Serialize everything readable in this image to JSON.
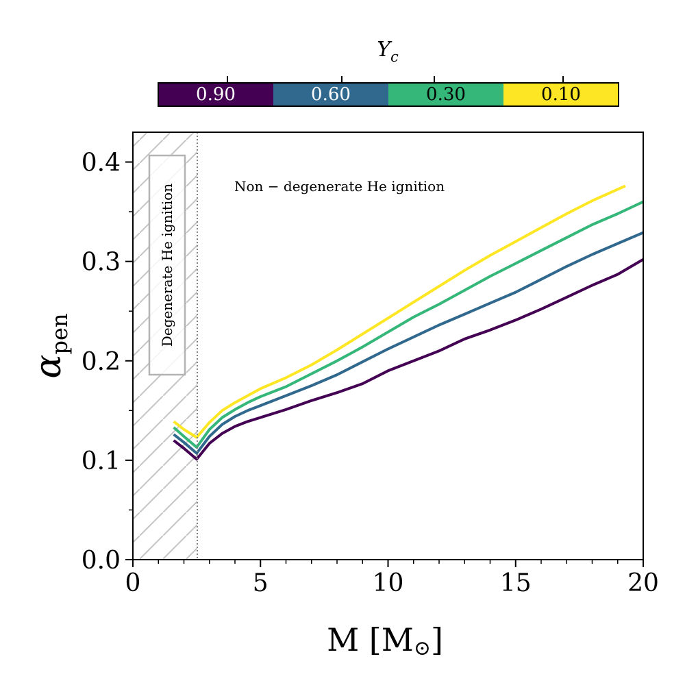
{
  "colorbar": {
    "title": "Y",
    "title_sub": "c",
    "segments": [
      {
        "label": "0.90",
        "color": "#440154"
      },
      {
        "label": "0.60",
        "color": "#31688e"
      },
      {
        "label": "0.30",
        "color": "#35b779"
      },
      {
        "label": "0.10",
        "color": "#fde725"
      }
    ]
  },
  "chart_data": {
    "type": "line",
    "xlabel": "M [M",
    "xlabel_symbol": "⊙",
    "xlabel_close": "]",
    "ylabel": "α",
    "ylabel_sub": "pen",
    "xlim": [
      0,
      20
    ],
    "ylim": [
      0,
      0.43
    ],
    "xticks": [
      0,
      5,
      10,
      15,
      20
    ],
    "xtick_labels": [
      "0",
      "5",
      "10",
      "15",
      "20"
    ],
    "yticks": [
      0.0,
      0.1,
      0.2,
      0.3,
      0.4
    ],
    "ytick_labels": [
      "0.0",
      "0.1",
      "0.2",
      "0.3",
      "0.4"
    ],
    "grid": false,
    "legend": "none",
    "annotations": {
      "degenerate_label": "Degenerate He ignition",
      "non_degenerate_label": "Non − degenerate He ignition",
      "boundary_x": 2.5,
      "hatched_region": [
        0,
        2.5
      ]
    },
    "series": [
      {
        "yc": "0.90",
        "color": "#440154",
        "x": [
          1.6,
          2.0,
          2.5,
          3.0,
          3.5,
          4.0,
          4.5,
          5.0,
          6.0,
          7.0,
          8.0,
          9.0,
          10.0,
          11.0,
          12.0,
          13.0,
          14.0,
          15.0,
          16.0,
          17.0,
          18.0,
          19.0,
          20.0
        ],
        "y": [
          0.12,
          0.112,
          0.101,
          0.117,
          0.127,
          0.134,
          0.139,
          0.143,
          0.151,
          0.16,
          0.168,
          0.177,
          0.19,
          0.2,
          0.21,
          0.222,
          0.231,
          0.241,
          0.252,
          0.264,
          0.276,
          0.287,
          0.302
        ]
      },
      {
        "yc": "0.60",
        "color": "#31688e",
        "x": [
          1.6,
          2.0,
          2.5,
          3.0,
          3.5,
          4.0,
          4.5,
          5.0,
          6.0,
          7.0,
          8.0,
          9.0,
          10.0,
          11.0,
          12.0,
          13.0,
          14.0,
          15.0,
          16.0,
          17.0,
          18.0,
          19.0,
          20.0
        ],
        "y": [
          0.126,
          0.118,
          0.107,
          0.124,
          0.136,
          0.144,
          0.15,
          0.155,
          0.165,
          0.175,
          0.186,
          0.199,
          0.212,
          0.224,
          0.236,
          0.247,
          0.258,
          0.269,
          0.282,
          0.295,
          0.307,
          0.318,
          0.329
        ]
      },
      {
        "yc": "0.30",
        "color": "#35b779",
        "x": [
          1.6,
          2.0,
          2.5,
          3.0,
          3.5,
          4.0,
          4.5,
          5.0,
          6.0,
          7.0,
          8.0,
          9.0,
          10.0,
          11.0,
          12.0,
          13.0,
          14.0,
          15.0,
          16.0,
          17.0,
          18.0,
          19.0,
          20.0
        ],
        "y": [
          0.133,
          0.124,
          0.113,
          0.131,
          0.143,
          0.151,
          0.158,
          0.164,
          0.174,
          0.187,
          0.2,
          0.214,
          0.229,
          0.244,
          0.257,
          0.271,
          0.285,
          0.298,
          0.311,
          0.324,
          0.337,
          0.348,
          0.36
        ]
      },
      {
        "yc": "0.10",
        "color": "#fde725",
        "x": [
          1.6,
          2.0,
          2.5,
          3.0,
          3.5,
          4.0,
          4.5,
          5.0,
          6.0,
          7.0,
          8.0,
          9.0,
          10.0,
          11.0,
          12.0,
          13.0,
          14.0,
          15.0,
          16.0,
          17.0,
          18.0,
          19.3
        ],
        "y": [
          0.139,
          0.131,
          0.123,
          0.138,
          0.15,
          0.158,
          0.165,
          0.172,
          0.183,
          0.196,
          0.211,
          0.227,
          0.243,
          0.259,
          0.275,
          0.291,
          0.306,
          0.32,
          0.334,
          0.348,
          0.361,
          0.376
        ]
      }
    ]
  }
}
